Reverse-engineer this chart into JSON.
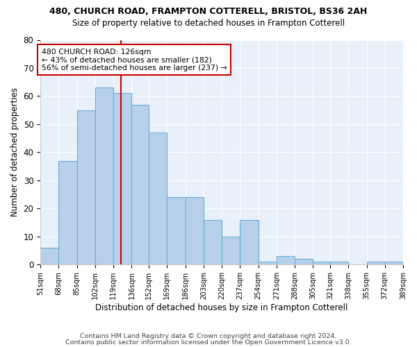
{
  "title1": "480, CHURCH ROAD, FRAMPTON COTTERELL, BRISTOL, BS36 2AH",
  "title2": "Size of property relative to detached houses in Frampton Cotterell",
  "xlabel": "Distribution of detached houses by size in Frampton Cotterell",
  "ylabel": "Number of detached properties",
  "footer1": "Contains HM Land Registry data © Crown copyright and database right 2024.",
  "footer2": "Contains public sector information licensed under the Open Government Licence v3.0.",
  "annotation_line1": "480 CHURCH ROAD: 126sqm",
  "annotation_line2": "← 43% of detached houses are smaller (182)",
  "annotation_line3": "56% of semi-detached houses are larger (237) →",
  "bar_values": [
    6,
    37,
    55,
    63,
    61,
    57,
    47,
    24,
    24,
    16,
    10,
    16,
    1,
    3,
    2,
    1,
    1,
    0,
    1,
    1
  ],
  "bin_labels": [
    "51sqm",
    "68sqm",
    "85sqm",
    "102sqm",
    "119sqm",
    "136sqm",
    "152sqm",
    "169sqm",
    "186sqm",
    "203sqm",
    "220sqm",
    "237sqm",
    "254sqm",
    "271sqm",
    "288sqm",
    "305sqm",
    "321sqm",
    "338sqm",
    "355sqm",
    "372sqm",
    "389sqm"
  ],
  "bar_color": "#b8d0ea",
  "bar_edge_color": "#6aaed6",
  "vline_x": 126,
  "bin_edges": [
    51,
    68,
    85,
    102,
    119,
    136,
    152,
    169,
    186,
    203,
    220,
    237,
    254,
    271,
    288,
    305,
    321,
    338,
    355,
    372,
    389
  ],
  "ylim": [
    0,
    80
  ],
  "yticks": [
    0,
    10,
    20,
    30,
    40,
    50,
    60,
    70,
    80
  ],
  "plot_bg": "#e8f0fa",
  "annotation_box_color": "#cc0000",
  "vline_color": "#cc0000"
}
